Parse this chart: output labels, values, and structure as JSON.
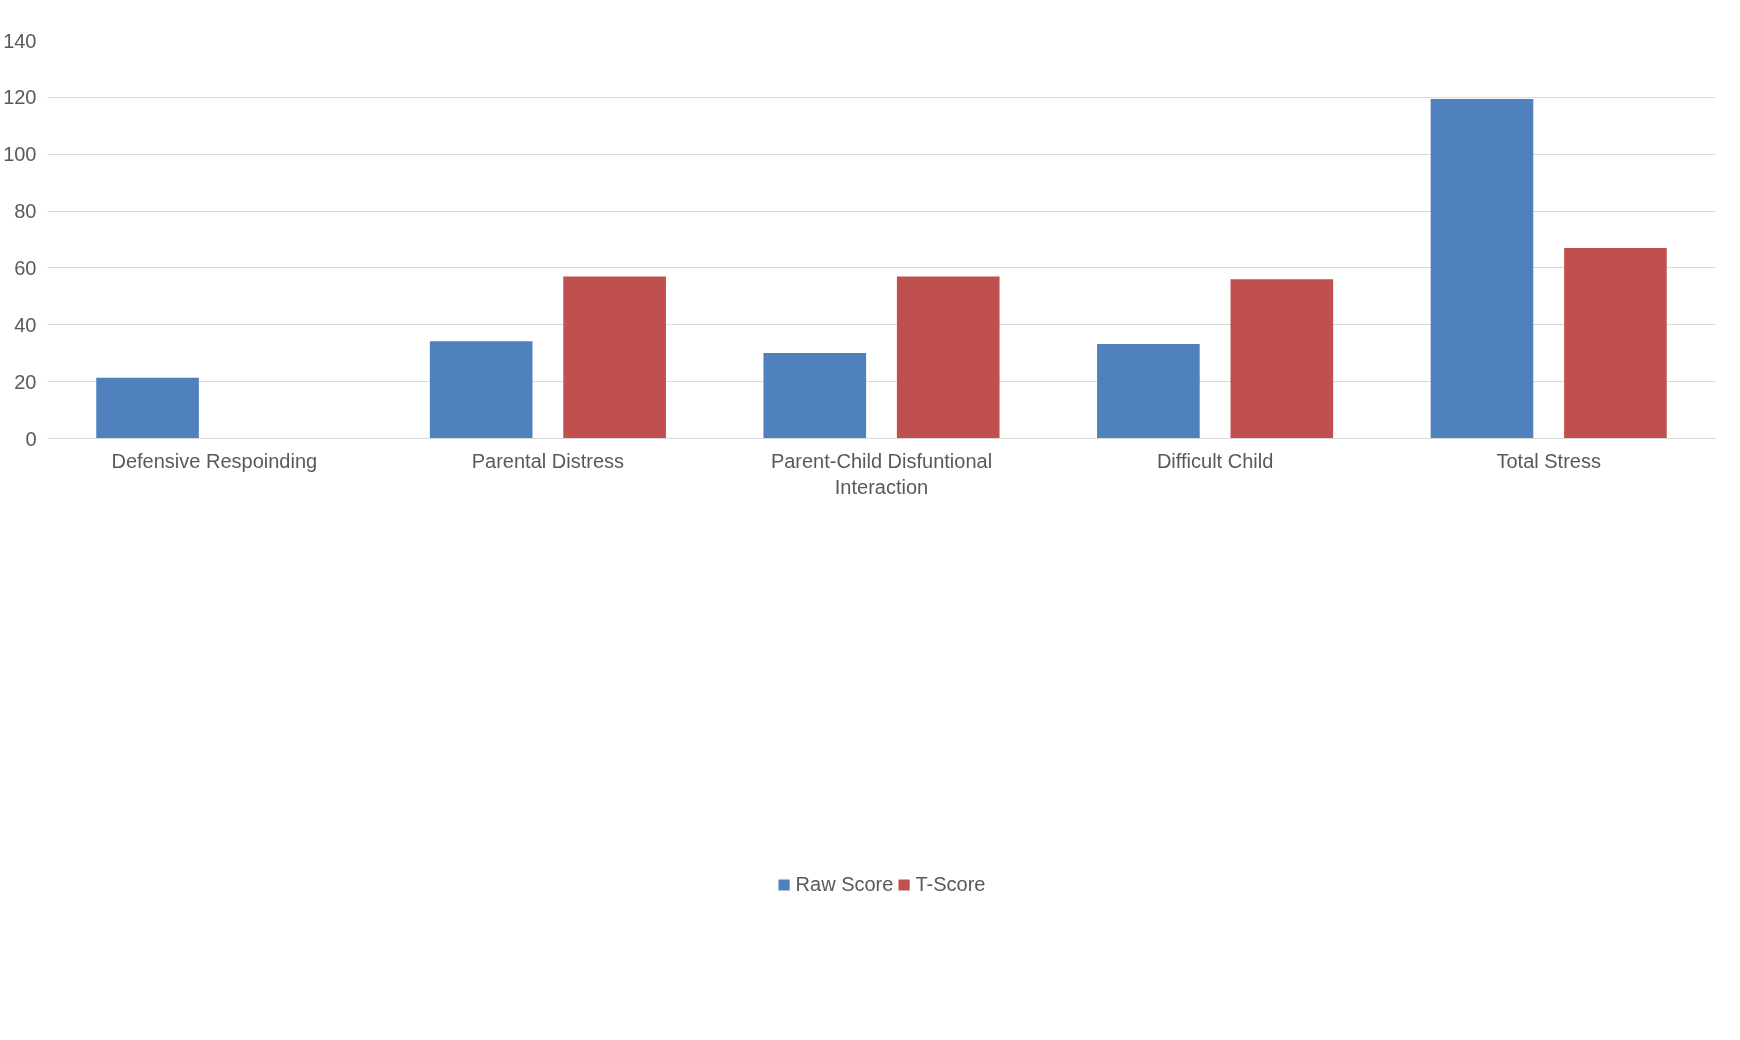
{
  "chart_data": {
    "type": "bar",
    "categories": [
      "Defensive Respoinding",
      "Parental Distress",
      "Parent-Child Disfuntional Interaction",
      "Difficult Child",
      "Total Stress"
    ],
    "series": [
      {
        "name": "Raw Score",
        "color": "#4f81bd",
        "values": [
          21.4,
          34.2,
          30.1,
          33.2,
          119.4
        ]
      },
      {
        "name": "T-Score",
        "color": "#c0504d",
        "values": [
          null,
          57,
          57,
          56,
          67
        ]
      }
    ],
    "ylim": [
      0,
      140
    ],
    "yticks": [
      0,
      20,
      40,
      60,
      80,
      100,
      120,
      140
    ],
    "grid": "y",
    "legend": "bottom"
  }
}
